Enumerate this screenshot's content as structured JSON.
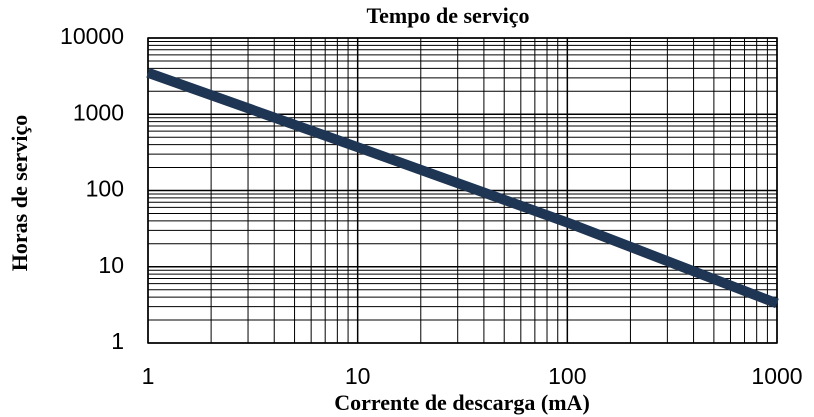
{
  "chart_data": {
    "type": "line",
    "title": "Tempo de serviço",
    "x_label": "Corrente de descarga (mA)",
    "y_label": "Horas de serviço",
    "x": [
      1,
      10,
      100,
      1000
    ],
    "series": [
      {
        "name": "Tempo de serviço",
        "color": "#1f3554",
        "values": [
          3500,
          370,
          38,
          3.3
        ]
      }
    ],
    "log_x": true,
    "log_y": true,
    "xlim": [
      1,
      1000
    ],
    "ylim": [
      1,
      10000
    ],
    "xticks": [
      1,
      10,
      100,
      1000
    ],
    "yticks": [
      1,
      10,
      100,
      1000,
      10000
    ],
    "x_minor_ticks": [
      2,
      3,
      4,
      5,
      6,
      7,
      8,
      9,
      20,
      30,
      40,
      50,
      60,
      70,
      80,
      90,
      200,
      300,
      400,
      500,
      600,
      700,
      800,
      900
    ],
    "y_minor_ticks": [
      2,
      3,
      4,
      5,
      6,
      7,
      8,
      9,
      20,
      30,
      40,
      50,
      60,
      70,
      80,
      90,
      200,
      300,
      400,
      500,
      600,
      700,
      800,
      900,
      2000,
      3000,
      4000,
      5000,
      6000,
      7000,
      8000,
      9000
    ],
    "grid": true
  }
}
